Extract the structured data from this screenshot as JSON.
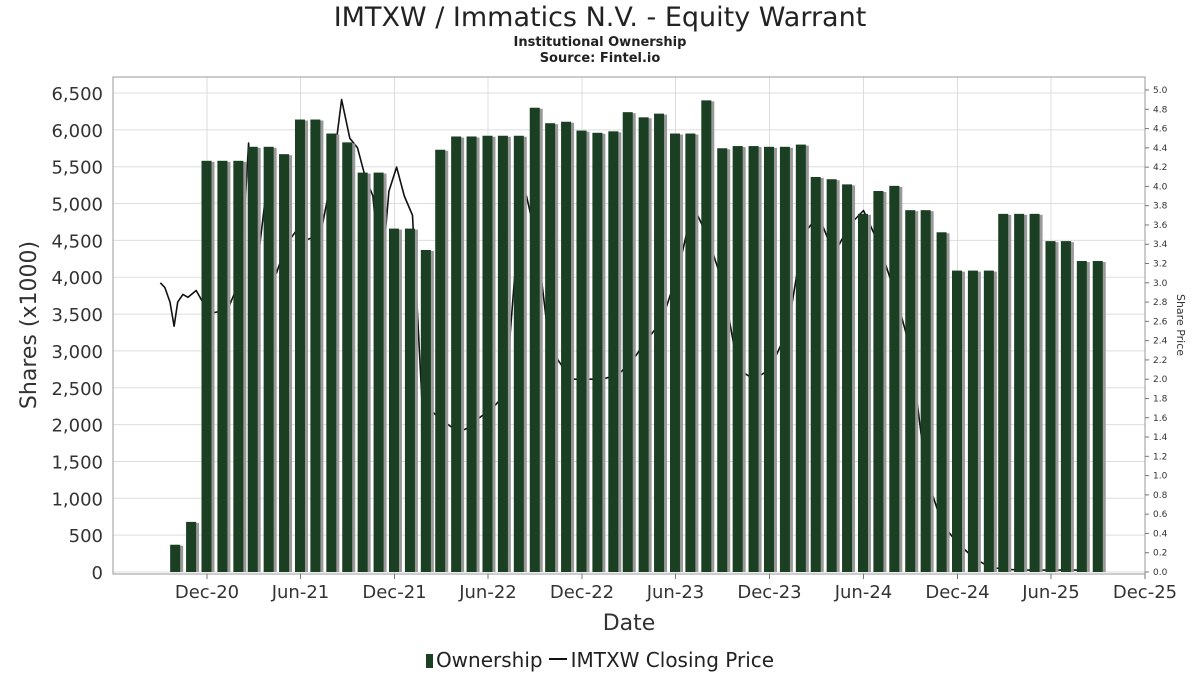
{
  "title": "IMTXW / Immatics N.V. - Equity Warrant",
  "subtitle": "Institutional Ownership",
  "source": "Source: Fintel.io",
  "legend": {
    "ownership": "Ownership",
    "price": "IMTXW Closing Price"
  },
  "colors": {
    "bar": "#1a3f23",
    "bar_shadow": "#999999",
    "line": "#111111",
    "grid": "#dddddd"
  },
  "chart_data": {
    "type": "bar",
    "xlabel": "Date",
    "ylabel": "Shares (x1000)",
    "y2label": "Share Price",
    "ylim": [
      0,
      6500
    ],
    "y2lim": [
      0,
      5.0
    ],
    "xlim": [
      "2020-06-01",
      "2025-12-01"
    ],
    "grid": true,
    "legend_position": "bottom",
    "x_ticks": [
      {
        "date": "2020-12-01",
        "label": "Dec-20"
      },
      {
        "date": "2021-06-01",
        "label": "Jun-21"
      },
      {
        "date": "2021-12-01",
        "label": "Dec-21"
      },
      {
        "date": "2022-06-01",
        "label": "Jun-22"
      },
      {
        "date": "2022-12-01",
        "label": "Dec-22"
      },
      {
        "date": "2023-06-01",
        "label": "Jun-23"
      },
      {
        "date": "2023-12-01",
        "label": "Dec-23"
      },
      {
        "date": "2024-06-01",
        "label": "Jun-24"
      },
      {
        "date": "2024-12-01",
        "label": "Dec-24"
      },
      {
        "date": "2025-06-01",
        "label": "Jun-25"
      },
      {
        "date": "2025-12-01",
        "label": "Dec-25"
      }
    ],
    "y_ticks": [
      "0",
      "500",
      "1,000",
      "1,500",
      "2,000",
      "2,500",
      "3,000",
      "3,500",
      "4,000",
      "4,500",
      "5,000",
      "5,500",
      "6,000",
      "6,500"
    ],
    "y_tick_values": [
      0,
      500,
      1000,
      1500,
      2000,
      2500,
      3000,
      3500,
      4000,
      4500,
      5000,
      5500,
      6000,
      6500
    ],
    "y2_ticks": [
      "0.0",
      "0.2",
      "0.4",
      "0.6",
      "0.8",
      "1.0",
      "1.2",
      "1.4",
      "1.6",
      "1.8",
      "2.0",
      "2.2",
      "2.4",
      "2.6",
      "2.8",
      "3.0",
      "3.2",
      "3.4",
      "3.6",
      "3.8",
      "4.0",
      "4.2",
      "4.4",
      "4.6",
      "4.8",
      "5.0"
    ],
    "y2_tick_values": [
      0,
      0.2,
      0.4,
      0.6,
      0.8,
      1.0,
      1.2,
      1.4,
      1.6,
      1.8,
      2.0,
      2.2,
      2.4,
      2.6,
      2.8,
      3.0,
      3.2,
      3.4,
      3.6,
      3.8,
      4.0,
      4.2,
      4.4,
      4.6,
      4.8,
      5.0
    ],
    "series": [
      {
        "name": "Ownership",
        "type": "bar",
        "points": [
          {
            "x": "2020-09-30",
            "y": 370
          },
          {
            "x": "2020-10-31",
            "y": 680
          },
          {
            "x": "2020-11-30",
            "y": 5580
          },
          {
            "x": "2020-12-31",
            "y": 5580
          },
          {
            "x": "2021-01-31",
            "y": 5580
          },
          {
            "x": "2021-02-28",
            "y": 5770
          },
          {
            "x": "2021-03-31",
            "y": 5770
          },
          {
            "x": "2021-04-30",
            "y": 5670
          },
          {
            "x": "2021-05-31",
            "y": 6140
          },
          {
            "x": "2021-06-30",
            "y": 6140
          },
          {
            "x": "2021-07-31",
            "y": 5950
          },
          {
            "x": "2021-08-31",
            "y": 5830
          },
          {
            "x": "2021-09-30",
            "y": 5420
          },
          {
            "x": "2021-10-31",
            "y": 5420
          },
          {
            "x": "2021-11-30",
            "y": 4660
          },
          {
            "x": "2021-12-31",
            "y": 4660
          },
          {
            "x": "2022-01-31",
            "y": 4370
          },
          {
            "x": "2022-02-28",
            "y": 5730
          },
          {
            "x": "2022-03-31",
            "y": 5910
          },
          {
            "x": "2022-04-30",
            "y": 5910
          },
          {
            "x": "2022-05-31",
            "y": 5920
          },
          {
            "x": "2022-06-30",
            "y": 5920
          },
          {
            "x": "2022-07-31",
            "y": 5920
          },
          {
            "x": "2022-08-31",
            "y": 6300
          },
          {
            "x": "2022-09-30",
            "y": 6090
          },
          {
            "x": "2022-10-31",
            "y": 6110
          },
          {
            "x": "2022-11-30",
            "y": 5990
          },
          {
            "x": "2022-12-31",
            "y": 5960
          },
          {
            "x": "2023-01-31",
            "y": 5980
          },
          {
            "x": "2023-02-28",
            "y": 6240
          },
          {
            "x": "2023-03-31",
            "y": 6170
          },
          {
            "x": "2023-04-30",
            "y": 6220
          },
          {
            "x": "2023-05-31",
            "y": 5950
          },
          {
            "x": "2023-06-30",
            "y": 5950
          },
          {
            "x": "2023-07-31",
            "y": 6400
          },
          {
            "x": "2023-08-31",
            "y": 5750
          },
          {
            "x": "2023-09-30",
            "y": 5780
          },
          {
            "x": "2023-10-31",
            "y": 5780
          },
          {
            "x": "2023-11-30",
            "y": 5770
          },
          {
            "x": "2023-12-31",
            "y": 5770
          },
          {
            "x": "2024-01-31",
            "y": 5800
          },
          {
            "x": "2024-02-29",
            "y": 5360
          },
          {
            "x": "2024-03-31",
            "y": 5330
          },
          {
            "x": "2024-04-30",
            "y": 5260
          },
          {
            "x": "2024-05-31",
            "y": 4860
          },
          {
            "x": "2024-06-30",
            "y": 5170
          },
          {
            "x": "2024-07-31",
            "y": 5240
          },
          {
            "x": "2024-08-31",
            "y": 4910
          },
          {
            "x": "2024-09-30",
            "y": 4910
          },
          {
            "x": "2024-10-31",
            "y": 4610
          },
          {
            "x": "2024-11-30",
            "y": 4090
          },
          {
            "x": "2024-12-31",
            "y": 4090
          },
          {
            "x": "2025-01-31",
            "y": 4090
          },
          {
            "x": "2025-02-28",
            "y": 4860
          },
          {
            "x": "2025-03-31",
            "y": 4860
          },
          {
            "x": "2025-04-30",
            "y": 4860
          },
          {
            "x": "2025-05-31",
            "y": 4490
          },
          {
            "x": "2025-06-30",
            "y": 4490
          },
          {
            "x": "2025-07-31",
            "y": 4220
          },
          {
            "x": "2025-08-31",
            "y": 4220
          }
        ]
      },
      {
        "name": "IMTXW Closing Price",
        "type": "line",
        "axis": "right",
        "points": [
          {
            "x": "2020-09-01",
            "y": 3.0
          },
          {
            "x": "2020-09-10",
            "y": 2.95
          },
          {
            "x": "2020-09-20",
            "y": 2.8
          },
          {
            "x": "2020-09-28",
            "y": 2.55
          },
          {
            "x": "2020-10-05",
            "y": 2.8
          },
          {
            "x": "2020-10-15",
            "y": 2.88
          },
          {
            "x": "2020-10-25",
            "y": 2.85
          },
          {
            "x": "2020-11-10",
            "y": 2.92
          },
          {
            "x": "2020-12-05",
            "y": 2.68
          },
          {
            "x": "2021-01-10",
            "y": 2.72
          },
          {
            "x": "2021-02-05",
            "y": 3.05
          },
          {
            "x": "2021-02-20",
            "y": 4.45
          },
          {
            "x": "2021-03-05",
            "y": 3.0
          },
          {
            "x": "2021-03-25",
            "y": 3.9
          },
          {
            "x": "2021-04-15",
            "y": 3.1
          },
          {
            "x": "2021-05-05",
            "y": 3.4
          },
          {
            "x": "2021-05-25",
            "y": 3.55
          },
          {
            "x": "2021-06-15",
            "y": 3.45
          },
          {
            "x": "2021-07-10",
            "y": 3.5
          },
          {
            "x": "2021-08-01",
            "y": 4.1
          },
          {
            "x": "2021-08-20",
            "y": 4.9
          },
          {
            "x": "2021-09-05",
            "y": 4.5
          },
          {
            "x": "2021-09-20",
            "y": 4.4
          },
          {
            "x": "2021-10-05",
            "y": 4.1
          },
          {
            "x": "2021-10-20",
            "y": 3.9
          },
          {
            "x": "2021-11-05",
            "y": 3.0
          },
          {
            "x": "2021-11-20",
            "y": 3.95
          },
          {
            "x": "2021-12-05",
            "y": 4.2
          },
          {
            "x": "2021-12-20",
            "y": 3.9
          },
          {
            "x": "2022-01-05",
            "y": 3.7
          },
          {
            "x": "2022-01-25",
            "y": 1.6
          },
          {
            "x": "2022-02-15",
            "y": 1.65
          },
          {
            "x": "2022-03-10",
            "y": 1.55
          },
          {
            "x": "2022-04-05",
            "y": 1.45
          },
          {
            "x": "2022-04-25",
            "y": 1.5
          },
          {
            "x": "2022-05-15",
            "y": 1.6
          },
          {
            "x": "2022-06-10",
            "y": 1.7
          },
          {
            "x": "2022-07-05",
            "y": 1.85
          },
          {
            "x": "2022-07-25",
            "y": 3.2
          },
          {
            "x": "2022-08-15",
            "y": 3.9
          },
          {
            "x": "2022-09-05",
            "y": 3.4
          },
          {
            "x": "2022-09-25",
            "y": 2.5
          },
          {
            "x": "2022-10-15",
            "y": 2.2
          },
          {
            "x": "2022-11-10",
            "y": 2.0
          },
          {
            "x": "2022-12-05",
            "y": 2.0
          },
          {
            "x": "2023-01-10",
            "y": 2.0
          },
          {
            "x": "2023-02-10",
            "y": 2.05
          },
          {
            "x": "2023-03-10",
            "y": 2.2
          },
          {
            "x": "2023-04-05",
            "y": 2.4
          },
          {
            "x": "2023-05-05",
            "y": 2.6
          },
          {
            "x": "2023-06-05",
            "y": 3.1
          },
          {
            "x": "2023-07-05",
            "y": 3.8
          },
          {
            "x": "2023-08-01",
            "y": 3.5
          },
          {
            "x": "2023-09-01",
            "y": 3.0
          },
          {
            "x": "2023-10-01",
            "y": 2.1
          },
          {
            "x": "2023-11-01",
            "y": 2.0
          },
          {
            "x": "2023-12-01",
            "y": 2.1
          },
          {
            "x": "2024-01-05",
            "y": 2.5
          },
          {
            "x": "2024-02-05",
            "y": 3.5
          },
          {
            "x": "2024-03-05",
            "y": 3.7
          },
          {
            "x": "2024-04-05",
            "y": 3.3
          },
          {
            "x": "2024-05-05",
            "y": 3.6
          },
          {
            "x": "2024-06-01",
            "y": 3.75
          },
          {
            "x": "2024-07-01",
            "y": 3.4
          },
          {
            "x": "2024-08-01",
            "y": 2.9
          },
          {
            "x": "2024-09-01",
            "y": 2.3
          },
          {
            "x": "2024-10-01",
            "y": 1.0
          },
          {
            "x": "2024-11-01",
            "y": 0.5
          },
          {
            "x": "2024-12-01",
            "y": 0.3
          },
          {
            "x": "2025-01-01",
            "y": 0.15
          },
          {
            "x": "2025-02-01",
            "y": 0.05
          },
          {
            "x": "2025-03-01",
            "y": 0.03
          },
          {
            "x": "2025-04-01",
            "y": 0.02
          },
          {
            "x": "2025-05-01",
            "y": 0.02
          },
          {
            "x": "2025-06-01",
            "y": 0.02
          },
          {
            "x": "2025-07-01",
            "y": 0.02
          },
          {
            "x": "2025-08-01",
            "y": 0.02
          }
        ]
      }
    ]
  }
}
